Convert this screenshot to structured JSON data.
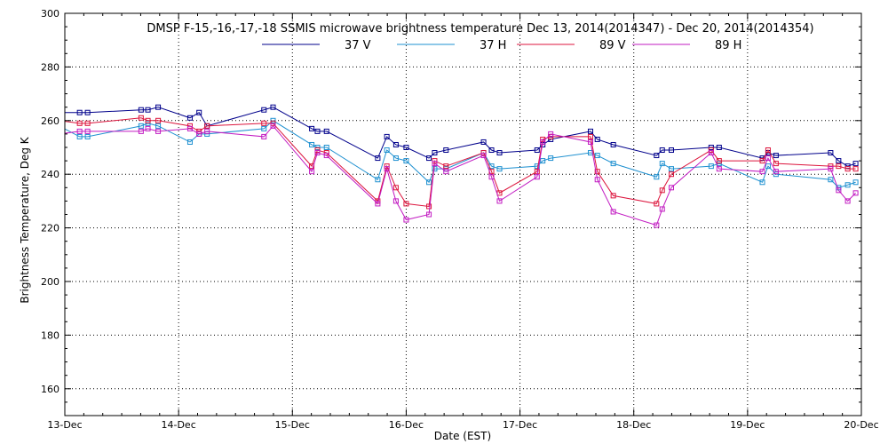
{
  "chart_data": {
    "type": "line",
    "title": "DMSP F-15,-16,-17,-18 SSMIS microwave brightness temperature Dec 13, 2014(2014347) - Dec 20, 2014(2014354)",
    "xlabel": "Date (EST)",
    "ylabel": "Brightness Temperature, Deg K",
    "ylim": [
      150,
      300
    ],
    "xlim": [
      0,
      7
    ],
    "grid": true,
    "legend_position": "top-center",
    "x_tick_labels": [
      "13-Dec",
      "14-Dec",
      "15-Dec",
      "16-Dec",
      "17-Dec",
      "18-Dec",
      "19-Dec",
      "20-Dec"
    ],
    "x_tick_values": [
      0,
      1,
      2,
      3,
      4,
      5,
      6,
      7
    ],
    "y_tick_values": [
      160,
      180,
      200,
      220,
      240,
      260,
      280,
      300
    ],
    "series": [
      {
        "name": "37 V",
        "color": "#00008b",
        "x": [
          -0.05,
          0.13,
          0.2,
          0.67,
          0.73,
          0.82,
          1.1,
          1.18,
          1.25,
          1.75,
          1.83,
          2.17,
          2.22,
          2.3,
          2.75,
          2.83,
          2.91,
          3.0,
          3.2,
          3.25,
          3.35,
          3.68,
          3.75,
          3.82,
          4.15,
          4.2,
          4.27,
          4.62,
          4.68,
          4.82,
          5.2,
          5.25,
          5.33,
          5.68,
          5.75,
          6.13,
          6.18,
          6.25,
          6.73,
          6.8,
          6.88,
          6.95
        ],
        "y": [
          263,
          263,
          263,
          264,
          264,
          265,
          261,
          263,
          258,
          264,
          265,
          257,
          256,
          256,
          246,
          254,
          251,
          250,
          246,
          248,
          249,
          252,
          249,
          248,
          249,
          251,
          253,
          256,
          253,
          251,
          247,
          249,
          249,
          250,
          250,
          246,
          248,
          247,
          248,
          245,
          243,
          244
        ]
      },
      {
        "name": "37 H",
        "color": "#1e90d0",
        "x": [
          -0.05,
          0.13,
          0.2,
          0.67,
          0.73,
          0.82,
          1.1,
          1.18,
          1.25,
          1.75,
          1.83,
          2.17,
          2.22,
          2.3,
          2.75,
          2.83,
          2.91,
          3.0,
          3.2,
          3.25,
          3.35,
          3.68,
          3.75,
          3.82,
          4.15,
          4.2,
          4.27,
          4.62,
          4.68,
          4.82,
          5.2,
          5.25,
          5.33,
          5.68,
          5.75,
          6.13,
          6.18,
          6.25,
          6.73,
          6.8,
          6.88,
          6.95
        ],
        "y": [
          258,
          254,
          254,
          258,
          259,
          258,
          252,
          255,
          255,
          257,
          260,
          251,
          250,
          250,
          238,
          249,
          246,
          245,
          237,
          242,
          242,
          248,
          243,
          242,
          243,
          245,
          246,
          248,
          247,
          244,
          239,
          244,
          242,
          243,
          244,
          237,
          243,
          240,
          238,
          235,
          236,
          237
        ]
      },
      {
        "name": "89 V",
        "color": "#dc143c",
        "x": [
          -0.05,
          0.13,
          0.2,
          0.67,
          0.73,
          0.82,
          1.1,
          1.18,
          1.25,
          1.75,
          1.83,
          2.17,
          2.22,
          2.3,
          2.75,
          2.83,
          2.91,
          3.0,
          3.2,
          3.25,
          3.35,
          3.68,
          3.75,
          3.82,
          4.15,
          4.2,
          4.27,
          4.62,
          4.68,
          4.82,
          5.2,
          5.25,
          5.33,
          5.68,
          5.75,
          6.13,
          6.18,
          6.25,
          6.73,
          6.8,
          6.88,
          6.95
        ],
        "y": [
          260,
          259,
          259,
          261,
          260,
          260,
          258,
          256,
          258,
          259,
          259,
          243,
          249,
          248,
          230,
          243,
          235,
          229,
          228,
          245,
          243,
          248,
          241,
          233,
          241,
          253,
          254,
          254,
          241,
          232,
          229,
          234,
          240,
          249,
          245,
          245,
          249,
          244,
          243,
          243,
          242,
          242
        ]
      },
      {
        "name": "89 H",
        "color": "#c21bc2",
        "x": [
          -0.05,
          0.13,
          0.2,
          0.67,
          0.73,
          0.82,
          1.1,
          1.18,
          1.25,
          1.75,
          1.83,
          2.17,
          2.22,
          2.3,
          2.75,
          2.83,
          2.91,
          3.0,
          3.2,
          3.25,
          3.35,
          3.68,
          3.75,
          3.82,
          4.15,
          4.2,
          4.27,
          4.62,
          4.68,
          4.82,
          5.2,
          5.25,
          5.33,
          5.68,
          5.75,
          6.13,
          6.18,
          6.25,
          6.73,
          6.8,
          6.88,
          6.95
        ],
        "y": [
          255,
          256,
          256,
          256,
          257,
          256,
          257,
          255,
          256,
          254,
          258,
          241,
          248,
          247,
          229,
          242,
          230,
          223,
          225,
          244,
          241,
          247,
          239,
          230,
          239,
          252,
          255,
          252,
          238,
          226,
          221,
          227,
          235,
          248,
          242,
          241,
          246,
          241,
          242,
          234,
          230,
          233
        ]
      }
    ]
  }
}
